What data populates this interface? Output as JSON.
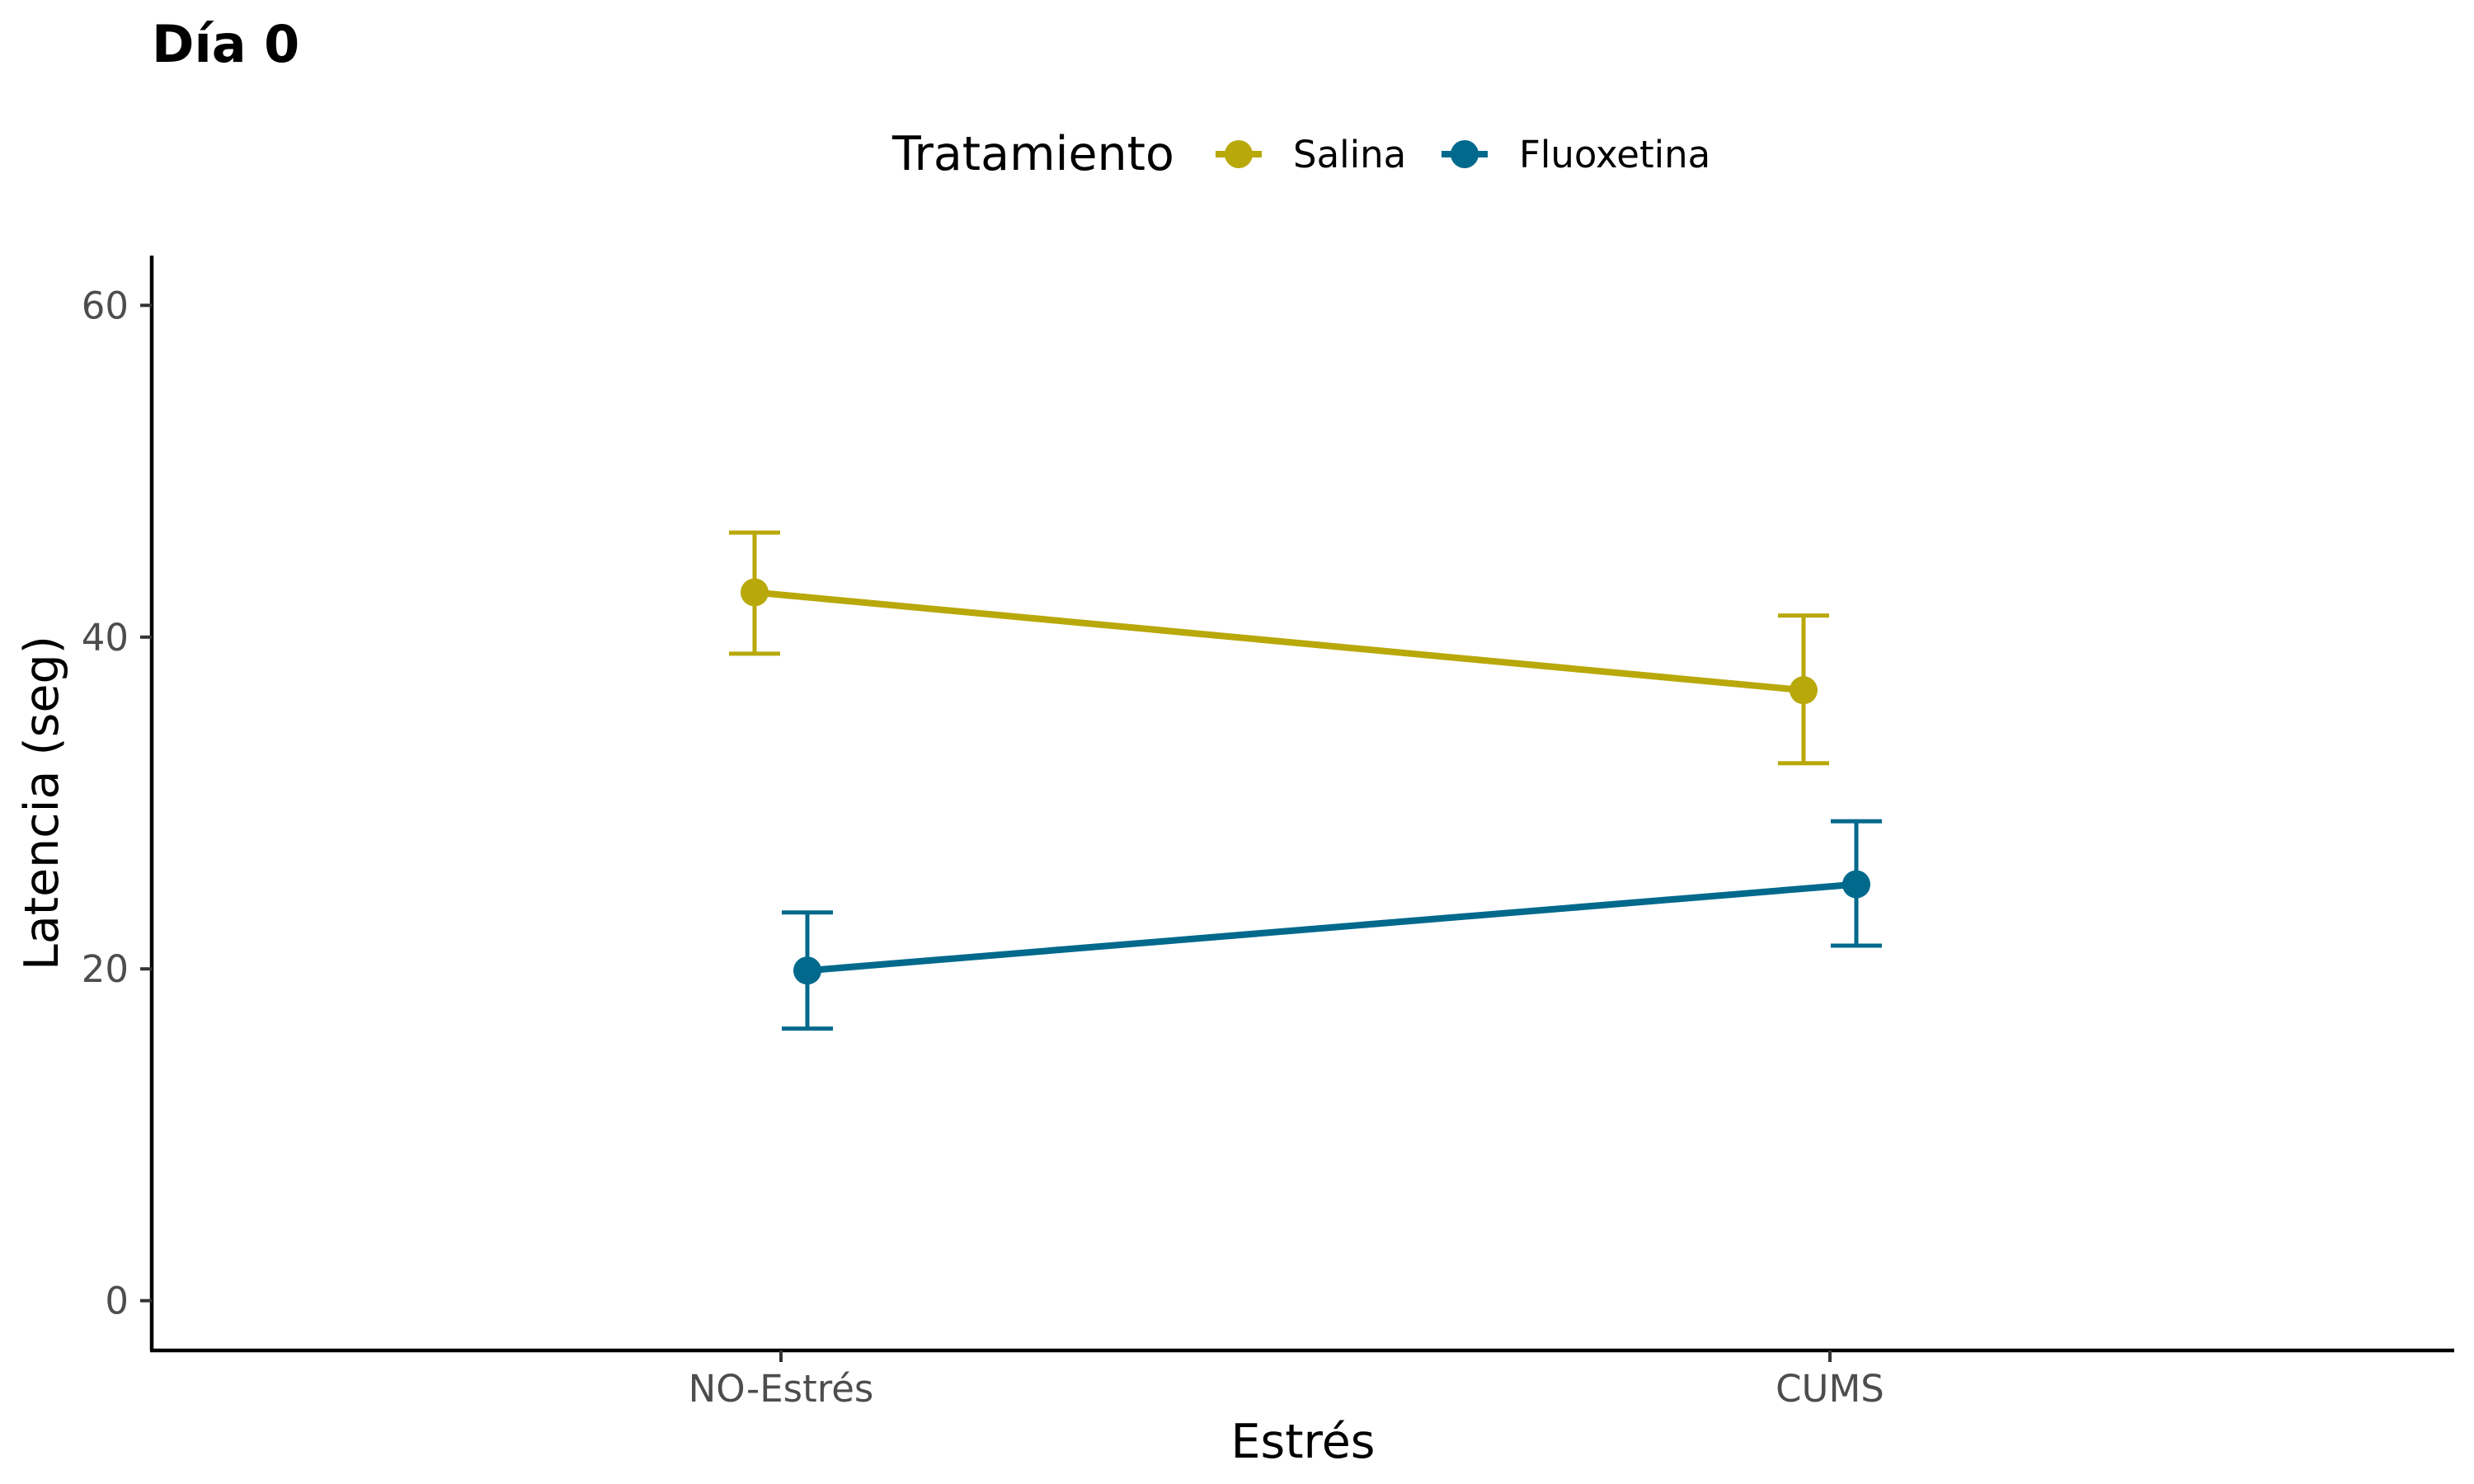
{
  "chart_data": {
    "type": "line",
    "title": "Día 0",
    "xlabel": "Estrés",
    "ylabel": "Latencia (seg)",
    "categories": [
      "NO-Estrés",
      "CUMS"
    ],
    "ylim": [
      -3,
      63
    ],
    "yticks": [
      0,
      20,
      40,
      60
    ],
    "grid": false,
    "legend": {
      "title": "Tratamiento",
      "position": "top"
    },
    "series": [
      {
        "name": "Salina",
        "color": "#B8A80A",
        "values": [
          42.7,
          36.8
        ],
        "error_low": [
          39.0,
          32.4
        ],
        "error_high": [
          46.3,
          41.3
        ]
      },
      {
        "name": "Fluoxetina",
        "color": "#00698C",
        "values": [
          19.9,
          25.1
        ],
        "error_low": [
          16.4,
          21.4
        ],
        "error_high": [
          23.4,
          28.9
        ]
      }
    ]
  }
}
